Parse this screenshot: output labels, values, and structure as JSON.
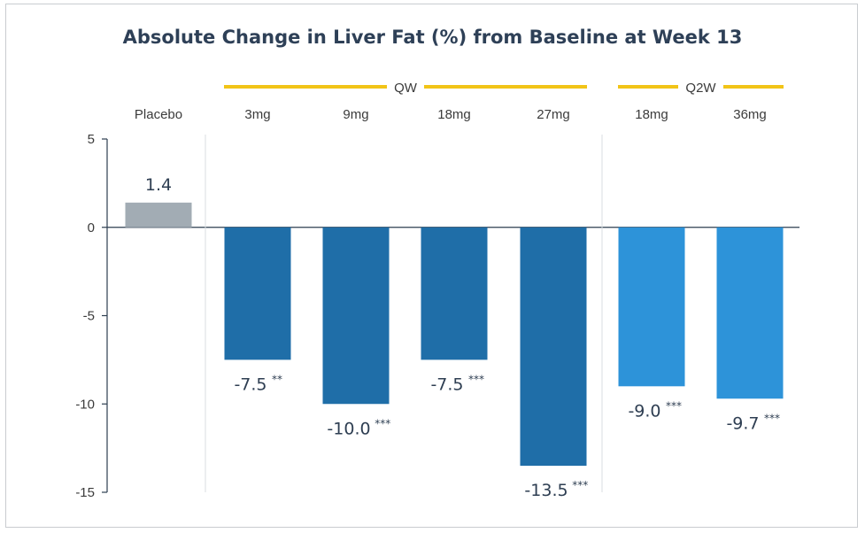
{
  "chart_data": {
    "type": "bar",
    "title": "Absolute Change in Liver Fat (%) from Baseline at Week 13",
    "groups": [
      {
        "label": "QW",
        "members": [
          1,
          2,
          3,
          4
        ]
      },
      {
        "label": "Q2W",
        "members": [
          5,
          6
        ]
      }
    ],
    "categories": [
      "Placebo",
      "3mg",
      "9mg",
      "18mg",
      "27mg",
      "18mg",
      "36mg"
    ],
    "values": [
      1.4,
      -7.5,
      -10.0,
      -7.5,
      -13.5,
      -9.0,
      -9.7
    ],
    "value_labels": [
      "1.4",
      "-7.5",
      "-10.0",
      "-7.5",
      "-13.5",
      "-9.0",
      "-9.7"
    ],
    "significance": [
      "",
      "**",
      "***",
      "***",
      "***",
      "***",
      "***"
    ],
    "bar_colors": [
      "#a2acb4",
      "#1f6ea8",
      "#1f6ea8",
      "#1f6ea8",
      "#1f6ea8",
      "#2d93d9",
      "#2d93d9"
    ],
    "ylim": [
      -15,
      5
    ],
    "yticks": [
      5,
      0,
      -5,
      -10,
      -15
    ],
    "group_line_color": "#f2c417",
    "xlabel": "",
    "ylabel": ""
  }
}
